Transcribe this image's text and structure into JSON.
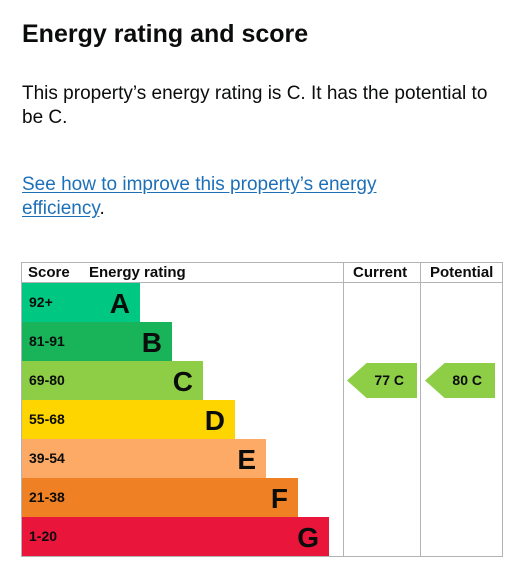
{
  "heading": "Energy rating and score",
  "summary": "This property’s energy rating is C. It has the potential to be C.",
  "link": {
    "text": "See how to improve this property’s energy efficiency",
    "suffix": "."
  },
  "chart_data": {
    "type": "table",
    "columns": [
      "Score",
      "Energy rating",
      "Current",
      "Potential"
    ],
    "bands": [
      {
        "score": "92+",
        "letter": "A",
        "color": "#00c781"
      },
      {
        "score": "81-91",
        "letter": "B",
        "color": "#19b459"
      },
      {
        "score": "69-80",
        "letter": "C",
        "color": "#8dce46"
      },
      {
        "score": "55-68",
        "letter": "D",
        "color": "#ffd500"
      },
      {
        "score": "39-54",
        "letter": "E",
        "color": "#fcaa65"
      },
      {
        "score": "21-38",
        "letter": "F",
        "color": "#ef8023"
      },
      {
        "score": "1-20",
        "letter": "G",
        "color": "#e9153b"
      }
    ],
    "current": {
      "score": 77,
      "band": "C",
      "label": "77 C",
      "color": "#8dce46"
    },
    "potential": {
      "score": 80,
      "band": "C",
      "label": "80 C",
      "color": "#8dce46"
    }
  }
}
